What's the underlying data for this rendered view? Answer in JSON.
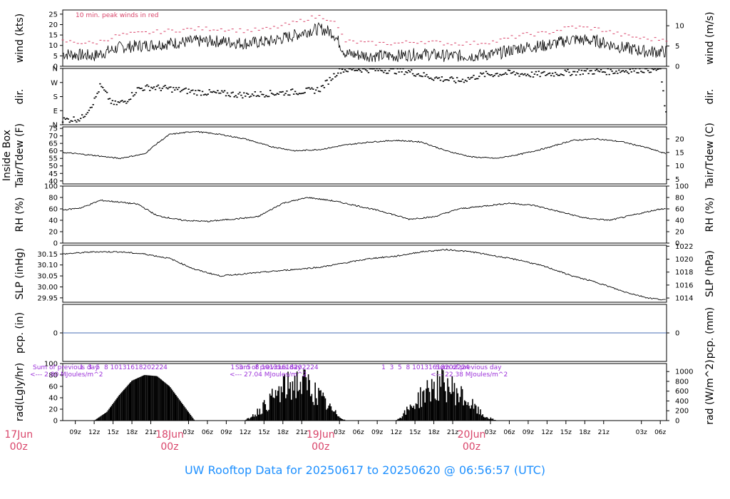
{
  "footer": "UW Rooftop Data for 20250617  to  20250620 @ 06:56:57  (UTC)",
  "colors": {
    "red": "#d9456a",
    "purple": "#9b30d9",
    "blue": "#1e90ff",
    "line": "#000000",
    "zero": "#4a6fb5"
  },
  "time_axis": {
    "range_hours": [
      -17,
      79
    ],
    "hour_ticks": [
      {
        "h": -15,
        "label": "09z"
      },
      {
        "h": -12,
        "label": "12z"
      },
      {
        "h": -9,
        "label": "15z"
      },
      {
        "h": -6,
        "label": "18z"
      },
      {
        "h": -3,
        "label": "21z"
      },
      {
        "h": 3,
        "label": "03z"
      },
      {
        "h": 6,
        "label": "06z"
      },
      {
        "h": 9,
        "label": "09z"
      },
      {
        "h": 12,
        "label": "12z"
      },
      {
        "h": 15,
        "label": "15z"
      },
      {
        "h": 18,
        "label": "18z"
      },
      {
        "h": 21,
        "label": "21z"
      },
      {
        "h": 27,
        "label": "03z"
      },
      {
        "h": 30,
        "label": "06z"
      },
      {
        "h": 33,
        "label": "09z"
      },
      {
        "h": 36,
        "label": "12z"
      },
      {
        "h": 39,
        "label": "15z"
      },
      {
        "h": 42,
        "label": "18z"
      },
      {
        "h": 45,
        "label": "21z"
      },
      {
        "h": 51,
        "label": "03z"
      },
      {
        "h": 54,
        "label": "06z"
      },
      {
        "h": 57,
        "label": "09z"
      },
      {
        "h": 60,
        "label": "12z"
      },
      {
        "h": 63,
        "label": "15z"
      },
      {
        "h": 66,
        "label": "18z"
      },
      {
        "h": 69,
        "label": "21z"
      },
      {
        "h": 75,
        "label": "03z"
      },
      {
        "h": 78,
        "label": "06z"
      }
    ],
    "day_labels": [
      {
        "h": -24,
        "date": "17Jun",
        "zulu": "00z"
      },
      {
        "h": 0,
        "date": "18Jun",
        "zulu": "00z"
      },
      {
        "h": 24,
        "date": "19Jun",
        "zulu": "00z"
      },
      {
        "h": 48,
        "date": "20Jun",
        "zulu": "00z"
      }
    ]
  },
  "chart_data": [
    {
      "type": "line",
      "id": "wind",
      "ylabel_left": "wind (kts)",
      "ylabel_right": "wind (m/s)",
      "ylim": [
        0,
        27
      ],
      "yticks_left": [
        0,
        5,
        10,
        15,
        20,
        25
      ],
      "yticks_right": [
        {
          "v": 0,
          "label": "0"
        },
        {
          "v": 9.72,
          "label": "5"
        },
        {
          "v": 19.44,
          "label": "10"
        }
      ],
      "annotation": "10 min. peak winds in red",
      "x": [
        -17,
        -12,
        -8,
        -4,
        0,
        4,
        8,
        12,
        16,
        20,
        22,
        24,
        26,
        28,
        32,
        36,
        40,
        44,
        48,
        52,
        56,
        60,
        64,
        68,
        72,
        76,
        79
      ],
      "y": [
        6,
        5,
        9,
        10,
        11,
        12,
        12,
        11,
        12,
        15,
        17,
        18,
        16,
        6,
        5,
        5,
        6,
        5,
        5,
        6,
        9,
        10,
        13,
        12,
        9,
        7,
        7
      ],
      "peak_offset": 5
    },
    {
      "type": "scatter",
      "id": "dir",
      "ylabel_left": "dir.",
      "ylabel_right": "dir.",
      "ylim": [
        0,
        360
      ],
      "yticks_left": [
        {
          "v": 0,
          "label": "N"
        },
        {
          "v": 90,
          "label": "E"
        },
        {
          "v": 180,
          "label": "S"
        },
        {
          "v": 270,
          "label": "W"
        },
        {
          "v": 360,
          "label": "N"
        }
      ],
      "x": [
        -17,
        -14,
        -12,
        -11,
        -9,
        -7,
        -5,
        -3,
        0,
        4,
        8,
        12,
        16,
        20,
        23,
        24,
        27,
        30,
        34,
        38,
        42,
        46,
        50,
        54,
        58,
        62,
        66,
        70,
        74,
        78,
        79
      ],
      "y": [
        30,
        40,
        150,
        250,
        130,
        150,
        230,
        240,
        230,
        210,
        200,
        190,
        200,
        210,
        220,
        230,
        350,
        355,
        350,
        340,
        300,
        280,
        320,
        330,
        320,
        330,
        340,
        340,
        350,
        355,
        40
      ]
    },
    {
      "type": "line",
      "id": "temp",
      "ylabel_left": "Tair/Tdew (F)",
      "ylabel_left2": "Inside Box",
      "ylabel_right": "Tair/Tdew (C)",
      "ylim": [
        38,
        76
      ],
      "yticks_left": [
        40,
        45,
        50,
        55,
        60,
        65,
        70,
        75
      ],
      "yticks_right": [
        {
          "v": 41,
          "label": "5"
        },
        {
          "v": 50,
          "label": "10"
        },
        {
          "v": 59,
          "label": "15"
        },
        {
          "v": 68,
          "label": "20"
        }
      ],
      "x": [
        -17,
        -12,
        -8,
        -4,
        -2,
        0,
        4,
        8,
        12,
        16,
        20,
        24,
        28,
        32,
        36,
        40,
        44,
        48,
        52,
        56,
        60,
        64,
        68,
        72,
        76,
        79
      ],
      "y": [
        59,
        57,
        55,
        58,
        65,
        71,
        73,
        71,
        68,
        63,
        60,
        61,
        64,
        66,
        67,
        66,
        60,
        56,
        55,
        58,
        62,
        67,
        68,
        66,
        62,
        58
      ]
    },
    {
      "type": "line",
      "id": "rh",
      "ylabel_left": "RH (%)",
      "ylabel_right": "RH (%)",
      "ylim": [
        0,
        100
      ],
      "yticks_left": [
        0,
        20,
        40,
        60,
        80,
        100
      ],
      "yticks_right": [
        {
          "v": 0,
          "label": "0"
        },
        {
          "v": 20,
          "label": "20"
        },
        {
          "v": 40,
          "label": "40"
        },
        {
          "v": 60,
          "label": "60"
        },
        {
          "v": 80,
          "label": "80"
        },
        {
          "v": 100,
          "label": "100"
        }
      ],
      "x": [
        -17,
        -14,
        -11,
        -8,
        -5,
        -2,
        2,
        6,
        10,
        14,
        18,
        22,
        26,
        30,
        34,
        38,
        42,
        46,
        50,
        54,
        58,
        62,
        66,
        70,
        74,
        78,
        79
      ],
      "y": [
        58,
        62,
        75,
        72,
        68,
        48,
        40,
        38,
        42,
        46,
        70,
        80,
        74,
        65,
        55,
        42,
        46,
        60,
        65,
        70,
        66,
        55,
        44,
        40,
        50,
        60,
        60
      ]
    },
    {
      "type": "line",
      "id": "slp",
      "ylabel_left": "SLP (inHg)",
      "ylabel_right": "SLP (hPa)",
      "ylim": [
        29.93,
        30.19
      ],
      "yticks_left": [
        29.95,
        30.0,
        30.05,
        30.1,
        30.15
      ],
      "yticks_right": [
        {
          "v": 29.9493,
          "label": "1014"
        },
        {
          "v": 30.0084,
          "label": "1016"
        },
        {
          "v": 30.0675,
          "label": "1018"
        },
        {
          "v": 30.1265,
          "label": "1020"
        },
        {
          "v": 30.1856,
          "label": "1022"
        }
      ],
      "x": [
        -17,
        -12,
        -8,
        -4,
        0,
        4,
        8,
        12,
        16,
        20,
        24,
        28,
        32,
        36,
        40,
        44,
        48,
        52,
        56,
        60,
        64,
        68,
        72,
        76,
        79
      ],
      "y": [
        30.15,
        30.16,
        30.16,
        30.15,
        30.13,
        30.08,
        30.05,
        30.06,
        30.07,
        30.08,
        30.09,
        30.11,
        30.13,
        30.14,
        30.16,
        30.17,
        30.16,
        30.14,
        30.12,
        30.09,
        30.05,
        30.02,
        29.98,
        29.95,
        29.94
      ]
    },
    {
      "type": "line",
      "id": "pcp",
      "ylabel_left": "pcp. (in)",
      "ylabel_right": "pcp. (mm)",
      "ylim": [
        -1,
        1
      ],
      "yticks_left": [
        0
      ],
      "yticks_right": [
        {
          "v": 0,
          "label": "0"
        }
      ],
      "x": [
        -17,
        79
      ],
      "y": [
        0,
        0
      ]
    },
    {
      "type": "area",
      "id": "rad",
      "ylabel_left": "rad(Lgly/hr)",
      "ylabel_right": "rad (W/m^2)",
      "ylim": [
        0,
        100
      ],
      "yticks_left": [
        0,
        20,
        40,
        60,
        80,
        100
      ],
      "yticks_right": [
        {
          "v": 0,
          "label": "0"
        },
        {
          "v": 17.2,
          "label": "200"
        },
        {
          "v": 34.4,
          "label": "400"
        },
        {
          "v": 51.6,
          "label": "600"
        },
        {
          "v": 68.8,
          "label": "800"
        },
        {
          "v": 86.0,
          "label": "1000"
        }
      ],
      "x": [
        -12,
        -10,
        -8,
        -6,
        -4,
        -2,
        0,
        2,
        4,
        12,
        14,
        16,
        18,
        20,
        22,
        24,
        26,
        28,
        36,
        38,
        40,
        42,
        44,
        46,
        48,
        50,
        52
      ],
      "y": [
        0,
        15,
        45,
        70,
        80,
        78,
        60,
        30,
        0,
        0,
        20,
        45,
        70,
        85,
        80,
        50,
        20,
        0,
        0,
        25,
        55,
        78,
        80,
        60,
        35,
        10,
        0
      ],
      "hour_marks": [
        "1",
        "3",
        "5",
        "8",
        "10",
        "13",
        "16",
        "18",
        "20",
        "22",
        "24"
      ],
      "notes": [
        {
          "line1": "Sum of previous day",
          "line2": "<--- 2.80 MJoules/m^2"
        },
        {
          "line1": "Sum of previous day",
          "line2": "<--- 27.04 MJoules/m^2"
        },
        {
          "line1": "Sum of previous day",
          "line2": "<--- 22.38 MJoules/m^2"
        }
      ]
    }
  ]
}
